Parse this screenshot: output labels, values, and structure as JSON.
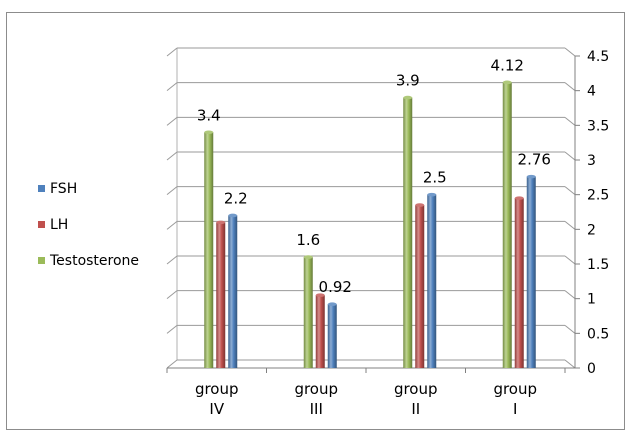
{
  "chart_data": {
    "type": "bar",
    "categories": [
      [
        "group",
        "IV"
      ],
      [
        "group",
        "III"
      ],
      [
        "group",
        "II"
      ],
      [
        "group",
        "I"
      ]
    ],
    "series": [
      {
        "name": "Testosterone",
        "color": "#9bbb59",
        "values": [
          3.4,
          1.6,
          3.9,
          4.12
        ]
      },
      {
        "name": "LH",
        "color": "#c0504d",
        "values": [
          2.1,
          1.05,
          2.35,
          2.45
        ]
      },
      {
        "name": "FSH",
        "color": "#4f81bd",
        "values": [
          2.2,
          0.92,
          2.5,
          2.76
        ]
      }
    ],
    "data_labels": [
      {
        "category": 0,
        "series": "Testosterone",
        "text": "3.4"
      },
      {
        "category": 0,
        "series": "FSH",
        "text": "2.2"
      },
      {
        "category": 1,
        "series": "Testosterone",
        "text": "1.6"
      },
      {
        "category": 1,
        "series": "FSH",
        "text": "0.92"
      },
      {
        "category": 2,
        "series": "Testosterone",
        "text": "3.9"
      },
      {
        "category": 2,
        "series": "FSH",
        "text": "2.5"
      },
      {
        "category": 3,
        "series": "Testosterone",
        "text": "4.12"
      },
      {
        "category": 3,
        "series": "FSH",
        "text": "2.76"
      }
    ],
    "legend_order": [
      "FSH",
      "LH",
      "Testosterone"
    ],
    "legend_position": "left",
    "ylim": [
      0,
      4.5
    ],
    "yticks": [
      "0",
      "0.5",
      "1",
      "1.5",
      "2",
      "2.5",
      "3",
      "3.5",
      "4",
      "4.5"
    ],
    "y_axis_side": "right",
    "grid": true
  }
}
